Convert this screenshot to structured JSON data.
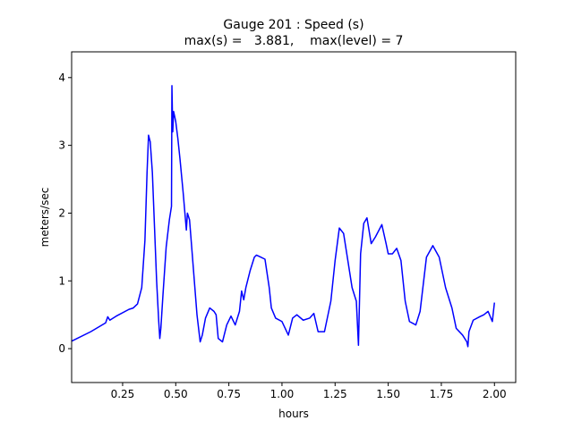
{
  "chart_data": {
    "type": "line",
    "title": "Gauge 201 : Speed (s)",
    "subtitle": "max(s) =   3.881,    max(level) = 7",
    "x_label": "hours",
    "y_label": "meters/sec",
    "xlim": [
      0.01,
      2.1
    ],
    "ylim": [
      -0.5,
      4.38
    ],
    "xticks": [
      0.25,
      {
        "value": 0.5,
        "label": "0.50"
      },
      0.75,
      {
        "value": 1.0,
        "label": "1.00"
      },
      1.25,
      {
        "value": 1.5,
        "label": "1.50"
      },
      1.75,
      {
        "value": 2.0,
        "label": "2.00"
      }
    ],
    "yticks": [
      0,
      1,
      2,
      3,
      4
    ],
    "grid": false,
    "series": [
      {
        "color": "#0000ff",
        "x": [
          0.01,
          0.1,
          0.17,
          0.18,
          0.19,
          0.22,
          0.28,
          0.3,
          0.32,
          0.34,
          0.355,
          0.365,
          0.372,
          0.38,
          0.39,
          0.4,
          0.41,
          0.42,
          0.425,
          0.43,
          0.44,
          0.455,
          0.47,
          0.48,
          0.482,
          0.486,
          0.49,
          0.5,
          0.51,
          0.52,
          0.535,
          0.55,
          0.555,
          0.565,
          0.575,
          0.59,
          0.6,
          0.615,
          0.625,
          0.64,
          0.66,
          0.68,
          0.69,
          0.7,
          0.72,
          0.74,
          0.76,
          0.78,
          0.8,
          0.81,
          0.82,
          0.83,
          0.85,
          0.87,
          0.88,
          0.9,
          0.92,
          0.94,
          0.95,
          0.97,
          1.0,
          1.03,
          1.05,
          1.07,
          1.1,
          1.13,
          1.15,
          1.17,
          1.2,
          1.23,
          1.25,
          1.27,
          1.29,
          1.31,
          1.33,
          1.35,
          1.36,
          1.37,
          1.385,
          1.4,
          1.42,
          1.44,
          1.47,
          1.49,
          1.5,
          1.52,
          1.54,
          1.56,
          1.58,
          1.6,
          1.63,
          1.65,
          1.68,
          1.71,
          1.74,
          1.77,
          1.8,
          1.82,
          1.85,
          1.87,
          1.875,
          1.88,
          1.9,
          1.93,
          1.95,
          1.97,
          1.99,
          2.0
        ],
        "values": [
          0.11,
          0.25,
          0.38,
          0.47,
          0.42,
          0.48,
          0.58,
          0.6,
          0.66,
          0.9,
          1.6,
          2.6,
          3.15,
          3.05,
          2.6,
          1.8,
          1.0,
          0.4,
          0.15,
          0.3,
          0.8,
          1.5,
          1.9,
          2.1,
          3.88,
          3.2,
          3.5,
          3.35,
          3.1,
          2.8,
          2.3,
          1.75,
          2.0,
          1.9,
          1.5,
          0.9,
          0.5,
          0.1,
          0.2,
          0.45,
          0.6,
          0.55,
          0.5,
          0.15,
          0.1,
          0.35,
          0.48,
          0.35,
          0.55,
          0.85,
          0.72,
          0.9,
          1.15,
          1.35,
          1.38,
          1.35,
          1.32,
          0.9,
          0.6,
          0.45,
          0.4,
          0.2,
          0.45,
          0.5,
          0.42,
          0.45,
          0.52,
          0.25,
          0.25,
          0.7,
          1.3,
          1.78,
          1.7,
          1.3,
          0.9,
          0.7,
          0.05,
          1.4,
          1.85,
          1.93,
          1.55,
          1.65,
          1.83,
          1.55,
          1.4,
          1.4,
          1.48,
          1.3,
          0.7,
          0.4,
          0.35,
          0.55,
          1.35,
          1.52,
          1.35,
          0.9,
          0.6,
          0.3,
          0.2,
          0.1,
          0.03,
          0.25,
          0.42,
          0.47,
          0.5,
          0.55,
          0.4,
          0.68
        ]
      }
    ]
  }
}
